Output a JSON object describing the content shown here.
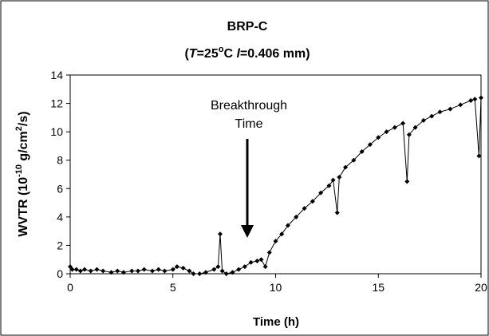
{
  "chart_data": {
    "type": "line",
    "title": "BRP-C",
    "subtitle_parts": [
      "(",
      "T",
      "=25",
      "o",
      "C ",
      "l",
      "=0.406 mm)"
    ],
    "x_label": "Time (h)",
    "y_label_parts": [
      "WVTR (10",
      "-10",
      " g/cm",
      "2",
      "/s)"
    ],
    "annotation": [
      "Breakthrough",
      "Time"
    ],
    "xlim": [
      0,
      20
    ],
    "ylim": [
      0,
      14
    ],
    "xticks": [
      0,
      5,
      10,
      15,
      20
    ],
    "yticks": [
      0,
      2,
      4,
      6,
      8,
      10,
      12,
      14
    ],
    "grid": false,
    "series": [
      {
        "color": "#000000",
        "x": [
          0,
          0.1,
          0.3,
          0.5,
          0.7,
          1,
          1.3,
          1.6,
          2,
          2.3,
          2.6,
          3,
          3.3,
          3.6,
          4,
          4.3,
          4.6,
          5,
          5.2,
          5.5,
          5.8,
          6,
          6.3,
          6.6,
          7,
          7.2,
          7.3,
          7.4,
          7.6,
          7.9,
          8.2,
          8.5,
          8.8,
          9.1,
          9.3,
          9.5,
          9.7,
          10,
          10.3,
          10.6,
          11,
          11.4,
          11.8,
          12.2,
          12.6,
          12.8,
          13,
          13.1,
          13.4,
          13.8,
          14.2,
          14.6,
          15,
          15.4,
          15.8,
          16.2,
          16.4,
          16.5,
          16.8,
          17.2,
          17.6,
          18,
          18.5,
          19,
          19.5,
          19.7,
          19.9,
          20
        ],
        "values": [
          0.5,
          0.3,
          0.3,
          0.2,
          0.3,
          0.2,
          0.3,
          0.2,
          0.1,
          0.2,
          0.1,
          0.2,
          0.2,
          0.3,
          0.2,
          0.3,
          0.2,
          0.3,
          0.5,
          0.4,
          0.2,
          0.0,
          0.0,
          0.1,
          0.3,
          0.5,
          2.8,
          0.2,
          0.0,
          0.1,
          0.3,
          0.5,
          0.8,
          0.9,
          1.0,
          0.5,
          1.5,
          2.3,
          2.8,
          3.4,
          4.0,
          4.6,
          5.1,
          5.7,
          6.2,
          6.6,
          4.3,
          6.8,
          7.5,
          8.0,
          8.6,
          9.1,
          9.6,
          10.0,
          10.3,
          10.6,
          6.5,
          9.8,
          10.3,
          10.8,
          11.1,
          11.4,
          11.6,
          11.9,
          12.2,
          12.3,
          8.3,
          12.4
        ]
      }
    ]
  }
}
